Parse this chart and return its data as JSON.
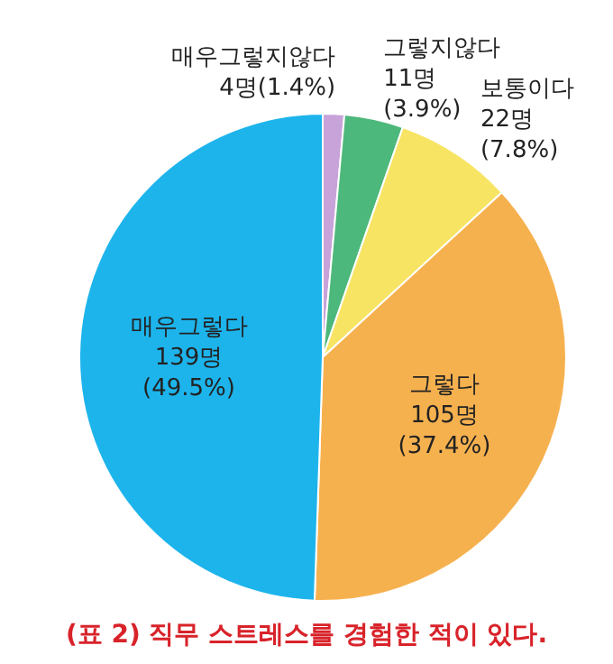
{
  "chart_data": {
    "type": "pie",
    "title": "(표 2) 직무 스트레스를 경험한 적이 있다.",
    "categories": [
      "매우그렇지않다",
      "그렇지않다",
      "보통이다",
      "그렇다",
      "매우그렇다"
    ],
    "values": [
      4,
      11,
      22,
      105,
      139
    ],
    "value_labels": [
      "4명(1.4%)",
      "11명 (3.9%)",
      "22명 (7.8%)",
      "105명 (37.4%)",
      "139명 (49.5%)"
    ],
    "colors": [
      "#c7a3d9",
      "#4db87c",
      "#f7e463",
      "#f6b14f",
      "#1db4ec"
    ]
  }
}
